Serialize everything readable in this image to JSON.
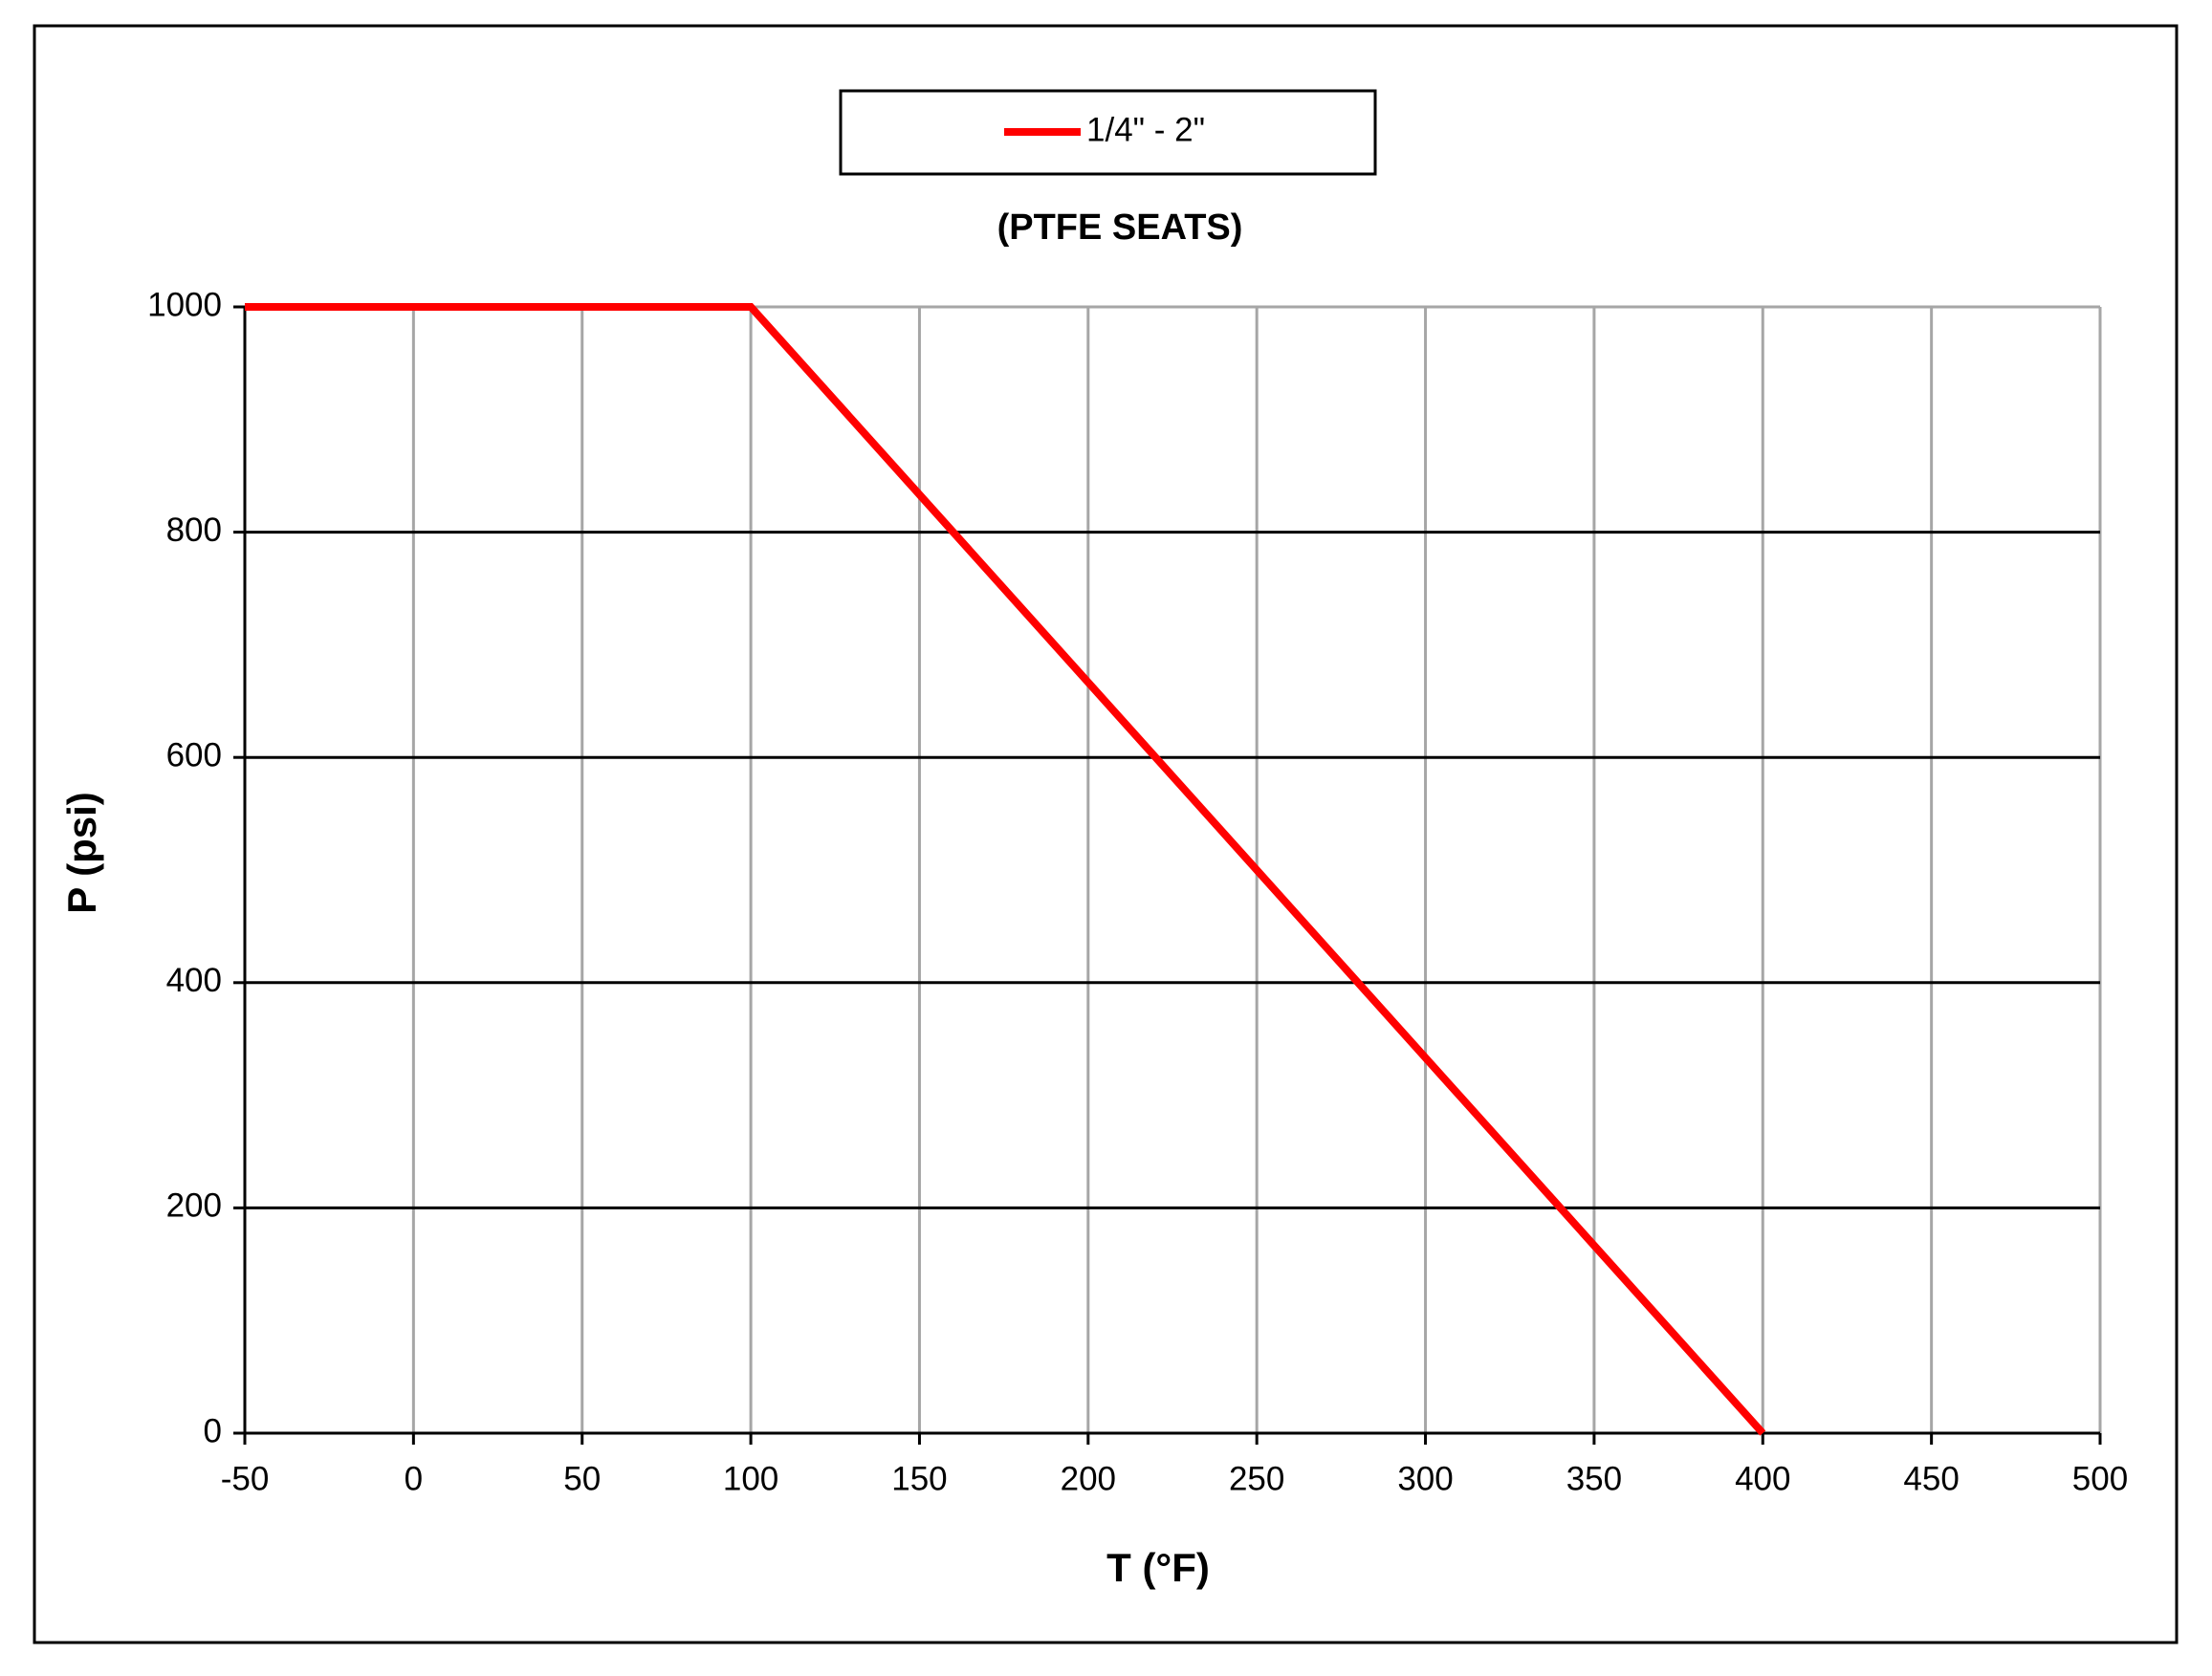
{
  "chart_data": {
    "type": "line",
    "title": "(PTFE SEATS)",
    "x_label": "T (°F)",
    "y_label": "P (psi)",
    "x": [
      -50,
      100,
      400
    ],
    "series": [
      {
        "name": "1/4\" - 2\"",
        "color": "#ff0000",
        "values": [
          1000,
          1000,
          0
        ]
      }
    ],
    "xlim": [
      -50,
      500
    ],
    "xticks": [
      -50,
      0,
      50,
      100,
      150,
      200,
      250,
      300,
      350,
      400,
      450,
      500
    ],
    "ylim": [
      0,
      1000
    ],
    "yticks": [
      0,
      200,
      400,
      600,
      800,
      1000
    ],
    "grid": true
  }
}
